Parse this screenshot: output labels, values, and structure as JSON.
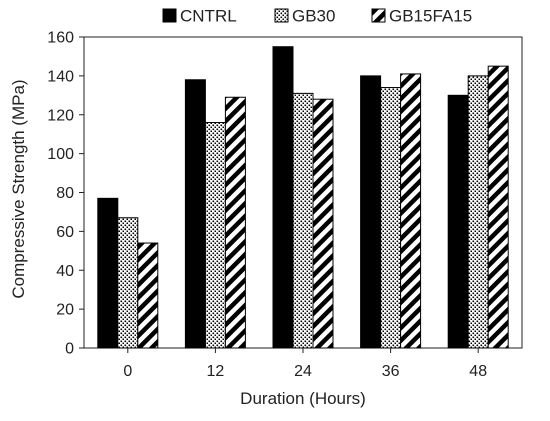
{
  "chart_data": {
    "type": "bar",
    "xlabel": "Duration (Hours)",
    "ylabel": "Compressive Strength (MPa)",
    "categories": [
      "0",
      "12",
      "24",
      "36",
      "48"
    ],
    "ylim": [
      0,
      160
    ],
    "yticks": [
      0,
      20,
      40,
      60,
      80,
      100,
      120,
      140,
      160
    ],
    "grid": false,
    "legend_position": "top",
    "series": [
      {
        "name": "CNTRL",
        "values": [
          77,
          138,
          155,
          140,
          130
        ],
        "pattern": "solid",
        "color": "#000000"
      },
      {
        "name": "GB30",
        "values": [
          67,
          116,
          131,
          134,
          140
        ],
        "pattern": "dots",
        "color": "#000000"
      },
      {
        "name": "GB15FA15",
        "values": [
          54,
          129,
          128,
          141,
          145
        ],
        "pattern": "diagonal-stripes",
        "color": "#000000"
      }
    ]
  }
}
